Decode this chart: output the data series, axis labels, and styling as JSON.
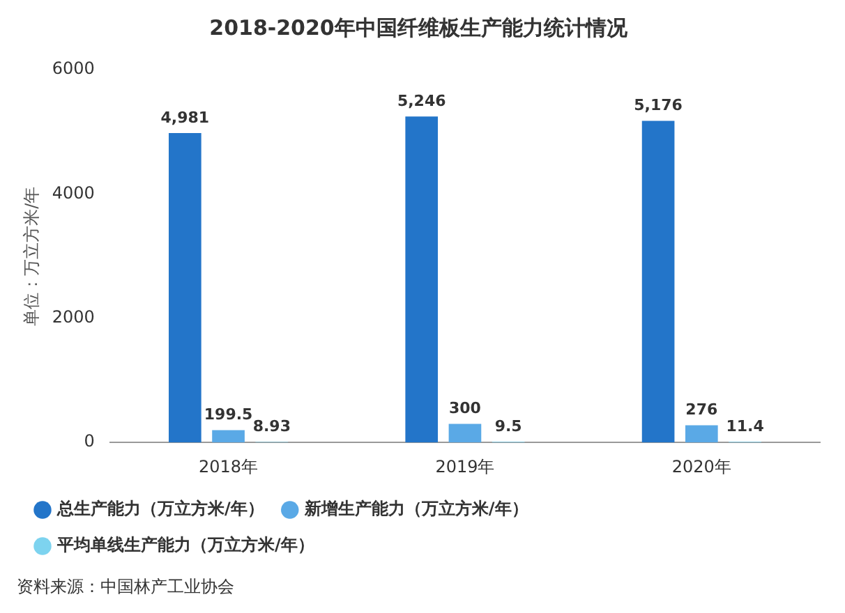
{
  "chart_data": {
    "type": "bar",
    "title": "2018-2020年中国纤维板生产能力统计情况",
    "ylabel": "单位：万立方米/年",
    "categories": [
      "2018年",
      "2019年",
      "2020年"
    ],
    "series": [
      {
        "name": "总生产能力（万立方米/年）",
        "color": "#2375c9",
        "values": [
          4981,
          5246,
          5176
        ],
        "value_labels": [
          "4,981",
          "5,246",
          "5,176"
        ]
      },
      {
        "name": "新增生产能力（万立方米/年）",
        "color": "#5aa9e6",
        "values": [
          199.5,
          300,
          276
        ],
        "value_labels": [
          "199.5",
          "300",
          "276"
        ]
      },
      {
        "name": "平均单线生产能力（万立方米/年）",
        "color": "#7dd3ef",
        "values": [
          8.93,
          9.5,
          11.4
        ],
        "value_labels": [
          "8.93",
          "9.5",
          "11.4"
        ]
      }
    ],
    "ylim": [
      0,
      6000
    ],
    "yticks": [
      0,
      2000,
      4000,
      6000
    ],
    "grid": false,
    "legend": "bottom",
    "marker": "circle",
    "annotations": [
      "资料来源：中国林产工业协会"
    ]
  }
}
